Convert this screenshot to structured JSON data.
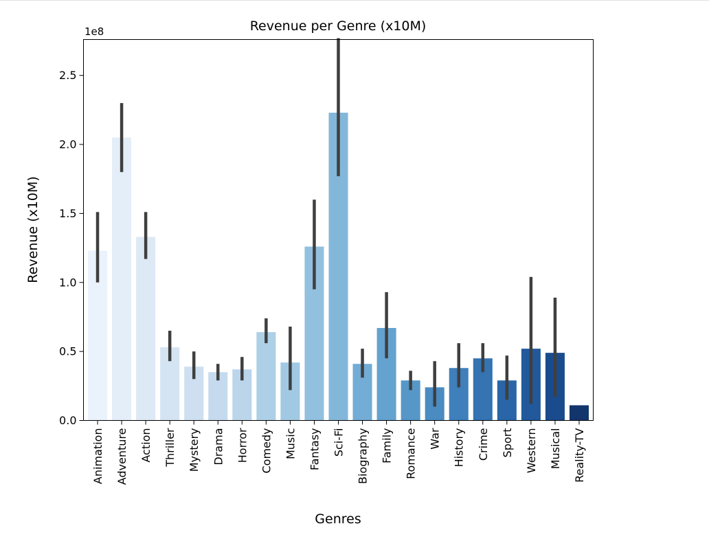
{
  "chart_data": {
    "type": "bar",
    "title": "Revenue per Genre (x10M)",
    "xlabel": "Genres",
    "ylabel": "Revenue (x10M)",
    "y_offset_label": "1e8",
    "ylim": [
      0,
      2.76
    ],
    "yticks": [
      0.0,
      0.5,
      1.0,
      1.5,
      2.0,
      2.5
    ],
    "ytick_labels": [
      "0.0",
      "0.5",
      "1.0",
      "1.5",
      "2.0",
      "2.5"
    ],
    "categories": [
      "Animation",
      "Adventure",
      "Action",
      "Thriller",
      "Mystery",
      "Drama",
      "Horror",
      "Comedy",
      "Music",
      "Fantasy",
      "Sci-Fi",
      "Biography",
      "Family",
      "Romance",
      "War",
      "History",
      "Crime",
      "Sport",
      "Western",
      "Musical",
      "Reality-TV"
    ],
    "values": [
      1.23,
      2.05,
      1.33,
      0.53,
      0.39,
      0.35,
      0.37,
      0.64,
      0.42,
      1.26,
      2.23,
      0.41,
      0.67,
      0.29,
      0.24,
      0.38,
      0.45,
      0.29,
      0.52,
      0.49,
      0.11
    ],
    "error_low": [
      1.0,
      1.8,
      1.17,
      0.43,
      0.3,
      0.29,
      0.29,
      0.56,
      0.22,
      0.95,
      1.77,
      0.31,
      0.45,
      0.22,
      0.1,
      0.24,
      0.35,
      0.15,
      0.12,
      0.17,
      0.11
    ],
    "error_high": [
      1.51,
      2.3,
      1.51,
      0.65,
      0.5,
      0.41,
      0.46,
      0.74,
      0.68,
      1.6,
      2.77,
      0.52,
      0.93,
      0.36,
      0.43,
      0.56,
      0.56,
      0.47,
      1.04,
      0.89,
      0.11
    ],
    "colors": [
      "#eaf2fb",
      "#e4eef8",
      "#dde9f5",
      "#d5e4f2",
      "#cddff0",
      "#c5daee",
      "#bbd5eb",
      "#add0e6",
      "#a1c9e3",
      "#92c0df",
      "#83b7da",
      "#73acd5",
      "#64a2cf",
      "#5697c8",
      "#4a8bc2",
      "#3f7fbb",
      "#3573b2",
      "#2a66a7",
      "#21599b",
      "#1a4c8d",
      "#12366b"
    ],
    "error_color": "#3f3f3f",
    "grid": false,
    "legend": false
  }
}
